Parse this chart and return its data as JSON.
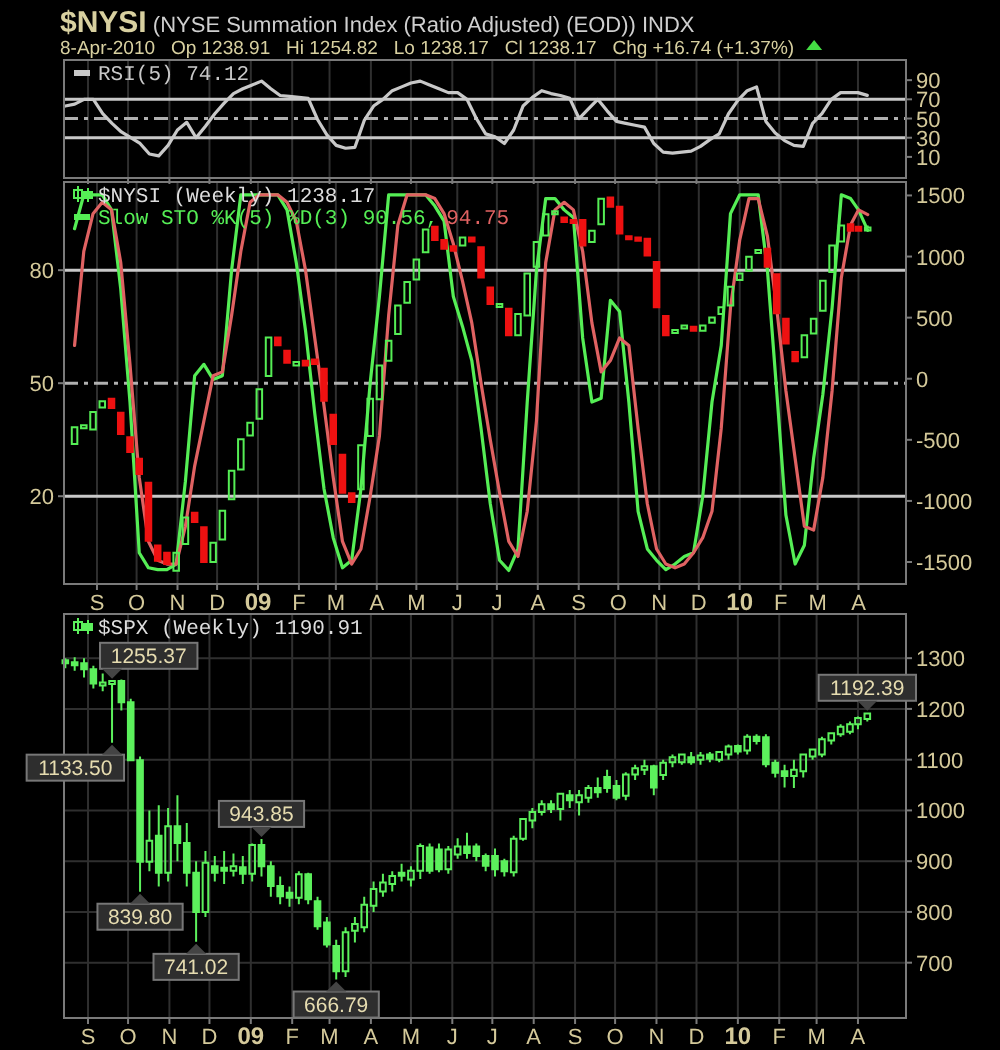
{
  "chart_data": [
    {
      "type": "line",
      "title": "$NYSI (NYSE Summation Index (Ratio Adjusted) (EOD)) INDX",
      "subtitle": "8-Apr-2010   Op 1238.91   Hi 1254.82   Lo 1238.17   Cl 1238.17   Chg +16.74 (+1.37%)",
      "x": [
        "2008-08-15",
        "2008-08-22",
        "2008-08-29",
        "2008-09-05",
        "2008-09-12",
        "2008-09-19",
        "2008-09-26",
        "2008-10-03",
        "2008-10-10",
        "2008-10-17",
        "2008-10-24",
        "2008-10-31",
        "2008-11-07",
        "2008-11-14",
        "2008-11-21",
        "2008-11-28",
        "2008-12-05",
        "2008-12-12",
        "2008-12-19",
        "2008-12-26",
        "2009-01-02",
        "2009-01-09",
        "2009-01-16",
        "2009-01-23",
        "2009-01-30",
        "2009-02-06",
        "2009-02-13",
        "2009-02-20",
        "2009-02-27",
        "2009-03-06",
        "2009-03-13",
        "2009-03-20",
        "2009-03-27",
        "2009-04-03",
        "2009-04-10",
        "2009-04-17",
        "2009-04-24",
        "2009-05-01",
        "2009-05-08",
        "2009-05-15",
        "2009-05-22",
        "2009-05-29",
        "2009-06-05",
        "2009-06-12",
        "2009-06-19",
        "2009-06-26",
        "2009-07-03",
        "2009-07-10",
        "2009-07-17",
        "2009-07-24",
        "2009-07-31",
        "2009-08-07",
        "2009-08-14",
        "2009-08-21",
        "2009-08-28",
        "2009-09-04",
        "2009-09-11",
        "2009-09-18",
        "2009-09-25",
        "2009-10-02",
        "2009-10-09",
        "2009-10-16",
        "2009-10-23",
        "2009-10-30",
        "2009-11-06",
        "2009-11-13",
        "2009-11-20",
        "2009-11-27",
        "2009-12-04",
        "2009-12-11",
        "2009-12-18",
        "2009-12-25",
        "2010-01-01",
        "2010-01-08",
        "2010-01-15",
        "2010-01-22",
        "2010-01-29",
        "2010-02-05",
        "2010-02-12",
        "2010-02-19",
        "2010-02-26",
        "2010-03-05",
        "2010-03-12",
        "2010-03-19",
        "2010-03-26",
        "2010-04-01",
        "2010-04-08"
      ],
      "series": [
        {
          "name": "RSI(5) 74.12",
          "color": "#c8c8c8",
          "values": [
            63,
            65,
            70,
            70,
            55,
            45,
            36,
            30,
            24,
            13,
            11,
            22,
            38,
            46,
            30,
            42,
            55,
            66,
            76,
            81,
            85,
            89,
            81,
            74,
            73,
            72,
            71,
            49,
            33,
            22,
            19,
            20,
            48,
            63,
            70,
            79,
            83,
            87,
            89,
            85,
            81,
            77,
            77,
            70,
            50,
            34,
            31,
            24,
            38,
            63,
            72,
            79,
            76,
            74,
            71,
            50,
            60,
            70,
            58,
            47,
            45,
            43,
            41,
            24,
            15,
            14,
            15,
            16,
            21,
            28,
            34,
            55,
            69,
            79,
            83,
            47,
            35,
            27,
            22,
            21,
            45,
            55,
            70,
            77,
            77,
            77,
            74.12
          ]
        }
      ],
      "xlim": [
        "2008-08-14",
        "2010-05-07"
      ],
      "xticks": [
        {
          "value": "2008-09-01",
          "label": null
        },
        {
          "value": "2008-10-01",
          "label": null
        },
        {
          "value": "2008-11-01",
          "label": null
        },
        {
          "value": "2008-12-01",
          "label": null
        },
        {
          "value": "2009-01-01",
          "label": null
        },
        {
          "value": "2009-02-01",
          "label": null
        },
        {
          "value": "2009-03-01",
          "label": null
        },
        {
          "value": "2009-04-01",
          "label": null
        },
        {
          "value": "2009-05-01",
          "label": null
        },
        {
          "value": "2009-06-01",
          "label": null
        },
        {
          "value": "2009-07-01",
          "label": null
        },
        {
          "value": "2009-08-01",
          "label": null
        },
        {
          "value": "2009-09-01",
          "label": null
        },
        {
          "value": "2009-10-01",
          "label": null
        },
        {
          "value": "2009-11-01",
          "label": null
        },
        {
          "value": "2009-12-01",
          "label": null
        },
        {
          "value": "2010-01-01",
          "label": null
        },
        {
          "value": "2010-02-01",
          "label": null
        },
        {
          "value": "2010-03-01",
          "label": null
        },
        {
          "value": "2010-04-01",
          "label": null
        }
      ],
      "ylim": [
        -12,
        111
      ],
      "yticks": [
        10,
        30,
        50,
        70,
        90
      ],
      "grid": "x",
      "legend": "top left",
      "tick_labels": "y",
      "ref_lines": [
        {
          "axis": "y",
          "value": 70,
          "color": "#c8c8c8",
          "line_style": "solid"
        },
        {
          "axis": "y",
          "value": 50,
          "color": "#b0b0b0",
          "line_style": "dashed"
        },
        {
          "axis": "y",
          "value": 30,
          "color": "#c8c8c8",
          "line_style": "solid"
        }
      ]
    },
    {
      "type": "candlestick",
      "x": [
        "2008-08-15",
        "2008-08-22",
        "2008-08-29",
        "2008-09-05",
        "2008-09-12",
        "2008-09-19",
        "2008-09-26",
        "2008-10-03",
        "2008-10-10",
        "2008-10-17",
        "2008-10-24",
        "2008-10-31",
        "2008-11-07",
        "2008-11-14",
        "2008-11-21",
        "2008-11-28",
        "2008-12-05",
        "2008-12-12",
        "2008-12-19",
        "2008-12-26",
        "2009-01-02",
        "2009-01-09",
        "2009-01-16",
        "2009-01-23",
        "2009-01-30",
        "2009-02-06",
        "2009-02-13",
        "2009-02-20",
        "2009-02-27",
        "2009-03-06",
        "2009-03-13",
        "2009-03-20",
        "2009-03-27",
        "2009-04-03",
        "2009-04-10",
        "2009-04-17",
        "2009-04-24",
        "2009-05-01",
        "2009-05-08",
        "2009-05-15",
        "2009-05-22",
        "2009-05-29",
        "2009-06-05",
        "2009-06-12",
        "2009-06-19",
        "2009-06-26",
        "2009-07-03",
        "2009-07-10",
        "2009-07-17",
        "2009-07-24",
        "2009-07-31",
        "2009-08-07",
        "2009-08-14",
        "2009-08-21",
        "2009-08-28",
        "2009-09-04",
        "2009-09-11",
        "2009-09-18",
        "2009-09-25",
        "2009-10-02",
        "2009-10-09",
        "2009-10-16",
        "2009-10-23",
        "2009-10-30",
        "2009-11-06",
        "2009-11-13",
        "2009-11-20",
        "2009-11-27",
        "2009-12-04",
        "2009-12-11",
        "2009-12-18",
        "2009-12-25",
        "2010-01-01",
        "2010-01-08",
        "2010-01-15",
        "2010-01-22",
        "2010-01-29",
        "2010-02-05",
        "2010-02-12",
        "2010-02-19",
        "2010-02-26",
        "2010-03-05",
        "2010-03-12",
        "2010-03-19",
        "2010-03-26",
        "2010-04-01",
        "2010-04-08"
      ],
      "series": [
        {
          "name": "$NYSI (Weekly) 1238.17",
          "type": "candlestick",
          "axis": "y2",
          "color": "#55ee55",
          "ohlc": [
            [
              -535,
              -398,
              -535,
              -398
            ],
            [
              -400,
              -380,
              -400,
              -380
            ],
            [
              -415,
              -273,
              -415,
              -273
            ],
            [
              -235,
              -185,
              -235,
              -185
            ],
            [
              -164,
              -164,
              -240,
              -240
            ],
            [
              -278,
              -278,
              -453,
              -453
            ],
            [
              -480,
              -480,
              -600,
              -600
            ],
            [
              -655,
              -655,
              -780,
              -780
            ],
            [
              -851,
              -851,
              -1326,
              -1326
            ],
            [
              -1364,
              -1364,
              -1489,
              -1489
            ],
            [
              -1424,
              -1424,
              -1516,
              -1516
            ],
            [
              -1571,
              -1424,
              -1571,
              -1424
            ],
            [
              -1353,
              -1135,
              -1353,
              -1135
            ],
            [
              -1096,
              -1096,
              -1173,
              -1173
            ],
            [
              -1216,
              -1216,
              -1500,
              -1500
            ],
            [
              -1500,
              -1342,
              -1500,
              -1342
            ],
            [
              -1315,
              -1080,
              -1315,
              -1080
            ],
            [
              -987,
              -753,
              -987,
              -753
            ],
            [
              -742,
              -496,
              -742,
              -496
            ],
            [
              -464,
              -360,
              -464,
              -360
            ],
            [
              -327,
              -87,
              -327,
              -87
            ],
            [
              22,
              338,
              22,
              338
            ],
            [
              338,
              338,
              273,
              273
            ],
            [
              229,
              229,
              131,
              131
            ],
            [
              109,
              136,
              109,
              136
            ],
            [
              147,
              147,
              109,
              109
            ],
            [
              158,
              158,
              120,
              120
            ],
            [
              82,
              82,
              -180,
              -180
            ],
            [
              -295,
              -295,
              -535,
              -535
            ],
            [
              -622,
              -622,
              -933,
              -933
            ],
            [
              -938,
              -938,
              -1009,
              -1009
            ],
            [
              -905,
              -545,
              -905,
              -545
            ],
            [
              -469,
              -164,
              -469,
              -164
            ],
            [
              -169,
              109,
              -169,
              109
            ],
            [
              147,
              311,
              147,
              311
            ],
            [
              365,
              600,
              365,
              600
            ],
            [
              622,
              791,
              622,
              791
            ],
            [
              813,
              976,
              813,
              976
            ],
            [
              1036,
              1222,
              1036,
              1222
            ],
            [
              1244,
              1244,
              1135,
              1135
            ],
            [
              1135,
              1135,
              1063,
              1063
            ],
            [
              1085,
              1085,
              1047,
              1047
            ],
            [
              1091,
              1156,
              1091,
              1156
            ],
            [
              1156,
              1156,
              1124,
              1124
            ],
            [
              1075,
              1075,
              829,
              829
            ],
            [
              747,
              747,
              611,
              611
            ],
            [
              600,
              611,
              600,
              611
            ],
            [
              573,
              573,
              355,
              355
            ],
            [
              355,
              529,
              355,
              529
            ],
            [
              518,
              862,
              518,
              862
            ],
            [
              916,
              1118,
              916,
              1118
            ],
            [
              1173,
              1347,
              1173,
              1347
            ],
            [
              1360,
              1370,
              1360,
              1370
            ],
            [
              1320,
              1320,
              1282,
              1282
            ],
            [
              1300,
              1300,
              1282,
              1282
            ],
            [
              1298,
              1298,
              1091,
              1091
            ],
            [
              1118,
              1211,
              1118,
              1211
            ],
            [
              1265,
              1473,
              1265,
              1473
            ],
            [
              1484,
              1484,
              1407,
              1407
            ],
            [
              1407,
              1407,
              1189,
              1189
            ],
            [
              1167,
              1167,
              1145,
              1145
            ],
            [
              1156,
              1156,
              1129,
              1129
            ],
            [
              1145,
              1145,
              1009,
              1009
            ],
            [
              955,
              955,
              584,
              584
            ],
            [
              513,
              513,
              355,
              355
            ],
            [
              382,
              398,
              382,
              398
            ],
            [
              415,
              436,
              415,
              436
            ],
            [
              425,
              425,
              393,
              393
            ],
            [
              393,
              436,
              393,
              436
            ],
            [
              458,
              502,
              458,
              502
            ],
            [
              529,
              584,
              529,
              584
            ],
            [
              600,
              753,
              600,
              753
            ],
            [
              807,
              862,
              807,
              862
            ],
            [
              884,
              998,
              884,
              998
            ],
            [
              1036,
              1053,
              1036,
              1053
            ],
            [
              1064,
              1064,
              916,
              916
            ],
            [
              856,
              856,
              535,
              535
            ],
            [
              491,
              491,
              289,
              289
            ],
            [
              218,
              218,
              142,
              142
            ],
            [
              175,
              355,
              175,
              355
            ],
            [
              371,
              491,
              371,
              491
            ],
            [
              556,
              802,
              556,
              802
            ],
            [
              873,
              1091,
              873,
              1091
            ],
            [
              1124,
              1254,
              1124,
              1254
            ],
            [
              1265,
              1265,
              1211,
              1211
            ],
            [
              1243,
              1243,
              1211,
              1211
            ],
            [
              1226,
              1255,
              1220,
              1238.17
            ]
          ],
          "colors": [
            "#55ee55",
            "#55ee55",
            "#55ee55",
            "#55ee55",
            "#ee1111",
            "#ee1111",
            "#ee1111",
            "#ee1111",
            "#ee1111",
            "#ee1111",
            "#ee1111",
            "#55ee55",
            "#55ee55",
            "#ee1111",
            "#ee1111",
            "#55ee55",
            "#55ee55",
            "#55ee55",
            "#55ee55",
            "#55ee55",
            "#55ee55",
            "#55ee55",
            "#ee1111",
            "#ee1111",
            "#55ee55",
            "#ee1111",
            "#ee1111",
            "#ee1111",
            "#ee1111",
            "#ee1111",
            "#ee1111",
            "#55ee55",
            "#55ee55",
            "#55ee55",
            "#55ee55",
            "#55ee55",
            "#55ee55",
            "#55ee55",
            "#55ee55",
            "#ee1111",
            "#ee1111",
            "#ee1111",
            "#55ee55",
            "#ee1111",
            "#ee1111",
            "#ee1111",
            "#55ee55",
            "#ee1111",
            "#55ee55",
            "#55ee55",
            "#55ee55",
            "#55ee55",
            "#55ee55",
            "#ee1111",
            "#ee1111",
            "#ee1111",
            "#55ee55",
            "#55ee55",
            "#ee1111",
            "#ee1111",
            "#ee1111",
            "#ee1111",
            "#ee1111",
            "#ee1111",
            "#ee1111",
            "#55ee55",
            "#55ee55",
            "#ee1111",
            "#55ee55",
            "#55ee55",
            "#55ee55",
            "#55ee55",
            "#55ee55",
            "#55ee55",
            "#55ee55",
            "#ee1111",
            "#ee1111",
            "#ee1111",
            "#ee1111",
            "#55ee55",
            "#55ee55",
            "#55ee55",
            "#55ee55",
            "#55ee55",
            "#ee1111",
            "#ee1111",
            "#55ee55"
          ]
        },
        {
          "name": "Slow STO %K(5) %D(3) 90.56,",
          "type": "line",
          "color": "#55ee55",
          "values": [
            91,
            100,
            100,
            100,
            96,
            75,
            45,
            5,
            1,
            0.5,
            0.5,
            2,
            24,
            52,
            55,
            51,
            52,
            80,
            100,
            100,
            100,
            100,
            100,
            96,
            82,
            64,
            42,
            22,
            9,
            1,
            3,
            22,
            50,
            73,
            100,
            100,
            100,
            100,
            100,
            97,
            93,
            73,
            65,
            56,
            38,
            18,
            3,
            0.3,
            6,
            45,
            80,
            99,
            99,
            96,
            94,
            62,
            45,
            46,
            72,
            69,
            45,
            16,
            6,
            3,
            0.5,
            2,
            4,
            5,
            20,
            45,
            60,
            95,
            100,
            100,
            100,
            80,
            48,
            15,
            2,
            7,
            30,
            47,
            70,
            100,
            99,
            96,
            90.56
          ]
        },
        {
          "name": "94.75",
          "type": "line",
          "color": "#e06262",
          "values": [
            60,
            85,
            95,
            98,
            96,
            82,
            55,
            25,
            8,
            3,
            2,
            2,
            12,
            28,
            40,
            52,
            53,
            68,
            85,
            98,
            100,
            100,
            100,
            98,
            93,
            80,
            62,
            44,
            25,
            8,
            2,
            6,
            20,
            36,
            68,
            92,
            100,
            100,
            100,
            99,
            95,
            87,
            77,
            66,
            50,
            35,
            21,
            8,
            4,
            16,
            40,
            82,
            96,
            98,
            96,
            85,
            66,
            53,
            56,
            62,
            60,
            38,
            18,
            6,
            2,
            1,
            2,
            5,
            9,
            16,
            38,
            70,
            88,
            99,
            99,
            89,
            70,
            48,
            30,
            12,
            11,
            25,
            48,
            78,
            92,
            96,
            94.75
          ]
        }
      ],
      "xlim": [
        "2008-08-07",
        "2010-05-07"
      ],
      "xticks": [
        {
          "value": "2008-09-01",
          "label": "S"
        },
        {
          "value": "2008-10-01",
          "label": "O"
        },
        {
          "value": "2008-11-01",
          "label": "N"
        },
        {
          "value": "2008-12-01",
          "label": "D"
        },
        {
          "value": "2009-01-01",
          "label": "09"
        },
        {
          "value": "2009-02-01",
          "label": "F"
        },
        {
          "value": "2009-03-01",
          "label": "M"
        },
        {
          "value": "2009-04-01",
          "label": "A"
        },
        {
          "value": "2009-05-01",
          "label": "M"
        },
        {
          "value": "2009-06-01",
          "label": "J"
        },
        {
          "value": "2009-07-01",
          "label": "J"
        },
        {
          "value": "2009-08-01",
          "label": "A"
        },
        {
          "value": "2009-09-01",
          "label": "S"
        },
        {
          "value": "2009-10-01",
          "label": "O"
        },
        {
          "value": "2009-11-01",
          "label": "N"
        },
        {
          "value": "2009-12-01",
          "label": "D"
        },
        {
          "value": "2010-01-01",
          "label": "10"
        },
        {
          "value": "2010-02-01",
          "label": "F"
        },
        {
          "value": "2010-03-01",
          "label": "M"
        },
        {
          "value": "2010-04-01",
          "label": "A"
        }
      ],
      "ylim": [
        -3.3,
        103.4
      ],
      "yticks": [
        20,
        50,
        80
      ],
      "y2lim": [
        -1680,
        1610
      ],
      "y2ticks": [
        -1500,
        -1000,
        -500,
        0,
        500,
        1000,
        1500
      ],
      "grid": "x",
      "legend": "top left",
      "ref_lines": [
        {
          "axis": "y",
          "value": 80,
          "color": "#c8c8c8",
          "line_style": "solid"
        },
        {
          "axis": "y",
          "value": 50,
          "color": "#b0b0b0",
          "line_style": "dashed"
        },
        {
          "axis": "y",
          "value": 20,
          "color": "#c8c8c8",
          "line_style": "solid"
        }
      ]
    },
    {
      "type": "candlestick",
      "x": [
        "2008-08-15",
        "2008-08-22",
        "2008-08-29",
        "2008-09-05",
        "2008-09-12",
        "2008-09-19",
        "2008-09-26",
        "2008-10-03",
        "2008-10-10",
        "2008-10-17",
        "2008-10-24",
        "2008-10-31",
        "2008-11-07",
        "2008-11-14",
        "2008-11-21",
        "2008-11-28",
        "2008-12-05",
        "2008-12-12",
        "2008-12-19",
        "2008-12-26",
        "2009-01-02",
        "2009-01-09",
        "2009-01-16",
        "2009-01-23",
        "2009-01-30",
        "2009-02-06",
        "2009-02-13",
        "2009-02-20",
        "2009-02-27",
        "2009-03-06",
        "2009-03-13",
        "2009-03-20",
        "2009-03-27",
        "2009-04-03",
        "2009-04-10",
        "2009-04-17",
        "2009-04-24",
        "2009-05-01",
        "2009-05-08",
        "2009-05-15",
        "2009-05-22",
        "2009-05-29",
        "2009-06-05",
        "2009-06-12",
        "2009-06-19",
        "2009-06-26",
        "2009-07-03",
        "2009-07-10",
        "2009-07-17",
        "2009-07-24",
        "2009-07-31",
        "2009-08-07",
        "2009-08-14",
        "2009-08-21",
        "2009-08-28",
        "2009-09-04",
        "2009-09-11",
        "2009-09-18",
        "2009-09-25",
        "2009-10-02",
        "2009-10-09",
        "2009-10-16",
        "2009-10-23",
        "2009-10-30",
        "2009-11-06",
        "2009-11-13",
        "2009-11-20",
        "2009-11-27",
        "2009-12-04",
        "2009-12-11",
        "2009-12-18",
        "2009-12-25",
        "2010-01-01",
        "2010-01-08",
        "2010-01-15",
        "2010-01-22",
        "2010-01-29",
        "2010-02-05",
        "2010-02-12",
        "2010-02-19",
        "2010-02-26",
        "2010-03-05",
        "2010-03-12",
        "2010-03-19",
        "2010-03-26",
        "2010-04-01",
        "2010-04-08"
      ],
      "series": [
        {
          "name": "$SPX (Weekly) 1190.91",
          "color": "#5cf05c",
          "ohlc": [
            [
              1296,
              1300,
              1280,
              1292
            ],
            [
              1292,
              1302,
              1275,
              1290
            ],
            [
              1290,
              1300,
              1262,
              1278
            ],
            [
              1278,
              1285,
              1240,
              1250
            ],
            [
              1250,
              1270,
              1235,
              1252
            ],
            [
              1250,
              1255.37,
              1133.5,
              1255
            ],
            [
              1255,
              1258,
              1197,
              1213
            ],
            [
              1213,
              1220,
              1099,
              1099
            ],
            [
              1099,
              1106,
              839.8,
              899
            ],
            [
              899,
              1000,
              880,
              940
            ],
            [
              950,
              1010,
              850,
              877
            ],
            [
              877,
              1005,
              860,
              969
            ],
            [
              969,
              1030,
              900,
              936
            ],
            [
              936,
              975,
              850,
              877
            ],
            [
              877,
              900,
              741.02,
              800
            ],
            [
              800,
              920,
              790,
              897
            ],
            [
              890,
              910,
              860,
              877
            ],
            [
              887,
              920,
              855,
              886
            ],
            [
              881,
              915,
              870,
              890
            ],
            [
              888,
              910,
              855,
              875
            ],
            [
              875,
              935,
              860,
              932
            ],
            [
              932,
              943.85,
              870,
              890
            ],
            [
              890,
              900,
              830,
              851
            ],
            [
              851,
              870,
              815,
              831
            ],
            [
              838,
              850,
              810,
              828
            ],
            [
              828,
              880,
              815,
              874
            ],
            [
              874,
              877,
              815,
              825
            ],
            [
              821,
              830,
              765,
              772
            ],
            [
              779,
              790,
              730,
              736
            ],
            [
              733,
              745,
              666.79,
              683
            ],
            [
              683,
              770,
              672,
              760
            ],
            [
              763,
              790,
              740,
              776
            ],
            [
              770,
              830,
              760,
              814
            ],
            [
              812,
              860,
              800,
              845
            ],
            [
              840,
              875,
              830,
              858
            ],
            [
              855,
              880,
              840,
              871
            ],
            [
              877,
              895,
              860,
              875
            ],
            [
              864,
              890,
              850,
              881
            ],
            [
              881,
              935,
              865,
              930
            ],
            [
              927,
              935,
              875,
              881
            ],
            [
              923,
              935,
              878,
              884
            ],
            [
              884,
              930,
              875,
              923
            ],
            [
              913,
              945,
              905,
              929
            ],
            [
              929,
              956,
              905,
              916
            ],
            [
              929,
              935,
              900,
              910
            ],
            [
              910,
              915,
              880,
              891
            ],
            [
              910,
              925,
              870,
              884
            ],
            [
              900,
              905,
              870,
              880
            ],
            [
              878,
              950,
              870,
              944
            ],
            [
              944,
              985,
              940,
              983
            ],
            [
              980,
              1005,
              965,
              997
            ],
            [
              997,
              1020,
              990,
              1012
            ],
            [
              1012,
              1020,
              995,
              1003
            ],
            [
              1003,
              1035,
              980,
              1033
            ],
            [
              1030,
              1040,
              1005,
              1020
            ],
            [
              1016,
              1040,
              990,
              1030
            ],
            [
              1025,
              1050,
              1015,
              1044
            ],
            [
              1044,
              1065,
              1025,
              1036
            ],
            [
              1066,
              1080,
              1035,
              1044
            ],
            [
              1048,
              1060,
              1020,
              1025
            ],
            [
              1029,
              1075,
              1020,
              1071
            ],
            [
              1071,
              1090,
              1060,
              1083
            ],
            [
              1080,
              1100,
              1070,
              1087
            ],
            [
              1087,
              1090,
              1030,
              1045
            ],
            [
              1070,
              1100,
              1060,
              1094
            ],
            [
              1095,
              1110,
              1085,
              1105
            ],
            [
              1095,
              1110,
              1090,
              1110
            ],
            [
              1105,
              1115,
              1090,
              1095
            ],
            [
              1100,
              1115,
              1090,
              1108
            ],
            [
              1110,
              1115,
              1095,
              1102
            ],
            [
              1100,
              1115,
              1095,
              1115
            ],
            [
              1110,
              1130,
              1100,
              1126
            ],
            [
              1127,
              1130,
              1110,
              1116
            ],
            [
              1118,
              1150,
              1110,
              1145
            ],
            [
              1145,
              1150,
              1130,
              1137
            ],
            [
              1144,
              1150,
              1085,
              1091
            ],
            [
              1094,
              1100,
              1065,
              1074
            ],
            [
              1077,
              1090,
              1045,
              1068
            ],
            [
              1068,
              1100,
              1044,
              1080
            ],
            [
              1077,
              1112,
              1065,
              1110
            ],
            [
              1106,
              1120,
              1100,
              1120
            ],
            [
              1110,
              1145,
              1105,
              1140
            ],
            [
              1138,
              1153,
              1130,
              1152
            ],
            [
              1150,
              1170,
              1145,
              1165
            ],
            [
              1155,
              1175,
              1150,
              1170
            ],
            [
              1170,
              1185,
              1160,
              1182
            ],
            [
              1180,
              1192.39,
              1175,
              1190.91
            ]
          ]
        }
      ],
      "xlim": [
        "2008-08-14",
        "2010-05-07"
      ],
      "xticks": [
        {
          "value": "2008-09-01",
          "label": "S"
        },
        {
          "value": "2008-10-01",
          "label": "O"
        },
        {
          "value": "2008-11-01",
          "label": "N"
        },
        {
          "value": "2008-12-01",
          "label": "D"
        },
        {
          "value": "2009-01-01",
          "label": "09"
        },
        {
          "value": "2009-02-01",
          "label": "F"
        },
        {
          "value": "2009-03-01",
          "label": "M"
        },
        {
          "value": "2009-04-01",
          "label": "A"
        },
        {
          "value": "2009-05-01",
          "label": "M"
        },
        {
          "value": "2009-06-01",
          "label": "J"
        },
        {
          "value": "2009-07-01",
          "label": "J"
        },
        {
          "value": "2009-08-01",
          "label": "A"
        },
        {
          "value": "2009-09-01",
          "label": "S"
        },
        {
          "value": "2009-10-01",
          "label": "O"
        },
        {
          "value": "2009-11-01",
          "label": "N"
        },
        {
          "value": "2009-12-01",
          "label": "D"
        },
        {
          "value": "2010-01-01",
          "label": "10"
        },
        {
          "value": "2010-02-01",
          "label": "F"
        },
        {
          "value": "2010-03-01",
          "label": "M"
        },
        {
          "value": "2010-04-01",
          "label": "A"
        }
      ],
      "ylim": [
        591,
        1387
      ],
      "yticks": [
        700,
        800,
        900,
        1000,
        1100,
        1200,
        1300
      ],
      "grid": true,
      "legend": "top left",
      "annotations": [
        {
          "text": "1255.37",
          "x": "2008-09-19",
          "y": 1255.37
        },
        {
          "text": "1133.50",
          "x": "2008-09-19",
          "y": 1133.5
        },
        {
          "text": "839.80",
          "x": "2008-10-10",
          "y": 839.8
        },
        {
          "text": "741.02",
          "x": "2008-11-21",
          "y": 741.02
        },
        {
          "text": "943.85",
          "x": "2009-01-09",
          "y": 943.85
        },
        {
          "text": "666.79",
          "x": "2009-03-06",
          "y": 666.79
        },
        {
          "text": "1192.39",
          "x": "2010-04-08",
          "y": 1192.39
        }
      ]
    }
  ]
}
